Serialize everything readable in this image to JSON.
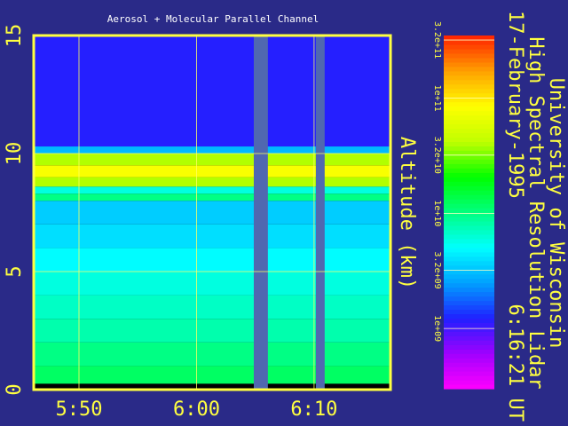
{
  "chart_data": {
    "type": "heatmap",
    "title": "Aerosol + Molecular Parallel Channel",
    "institution": "University of Wisconsin",
    "instrument": "High Spectral Resolution Lidar",
    "date": "17-February-1995",
    "time": "6:16:21 UT",
    "y_label": "Altitude (km)",
    "xlim": [
      346.15,
      376.5
    ],
    "xticks": [
      {
        "value": 350,
        "label": "5:50"
      },
      {
        "value": 360,
        "label": "6:00"
      },
      {
        "value": 370,
        "label": "6:10"
      }
    ],
    "ylim": [
      0,
      15
    ],
    "yticks": [
      0,
      5,
      10,
      15
    ],
    "grid": true,
    "altitude_bins": [
      0,
      0.25,
      1,
      2,
      3,
      4,
      5,
      6,
      7,
      8,
      8.3,
      8.6,
      9.0,
      9.5,
      10,
      10.3,
      15
    ],
    "values": [
      null,
      12000000000,
      10000000000,
      8000000000,
      7000000000,
      6000000000,
      5000000000,
      4000000000,
      3500000000,
      10000000000,
      6000000000,
      40000000000,
      80000000000,
      40000000000,
      3000000000,
      1200000000
    ],
    "gaps": [
      [
        364.87,
        366.07
      ],
      [
        370.15,
        370.9
      ]
    ],
    "gap_color": "#5068b0",
    "log_scale": true,
    "clim": [
      300000000,
      350000000000
    ],
    "cticks": [
      {
        "value": 320000000000,
        "label": "3.2e+11"
      },
      {
        "value": 100000000000,
        "label": "1e+11"
      },
      {
        "value": 32000000000,
        "label": "3.2e+10"
      },
      {
        "value": 10000000000,
        "label": "1e+10"
      },
      {
        "value": 3200000000,
        "label": "3.2e+09"
      },
      {
        "value": 1000000000,
        "label": "1e+09"
      }
    ],
    "colormap": [
      "#ff00ff",
      "#a000ff",
      "#2020ff",
      "#00a0ff",
      "#00ffff",
      "#00ff80",
      "#00ff00",
      "#c0ff00",
      "#ffff00",
      "#ffa000",
      "#ff2000"
    ]
  }
}
